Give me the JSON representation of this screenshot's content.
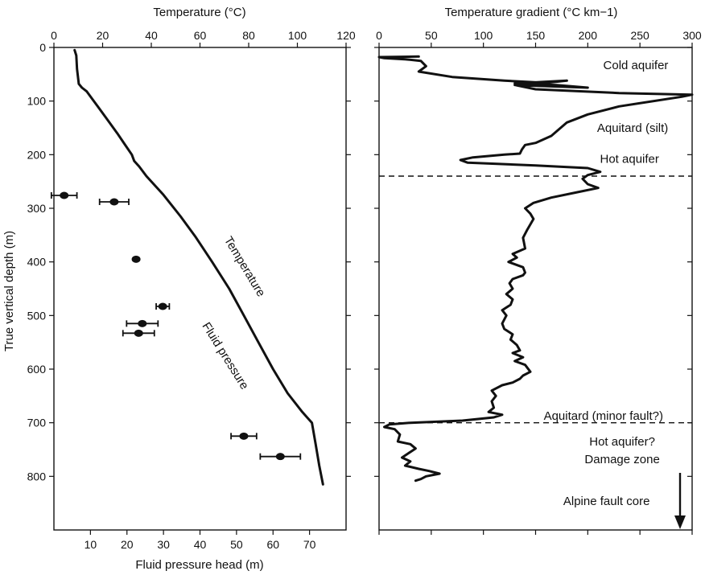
{
  "chart_data": [
    {
      "type": "line",
      "panel": "left",
      "ylabel": "True vertical depth (m)",
      "ylim": [
        0,
        900
      ],
      "yticks": [
        0,
        100,
        200,
        300,
        400,
        500,
        600,
        700,
        800
      ],
      "top_axis": {
        "label": "Temperature (°C)",
        "lim": [
          0,
          120
        ],
        "ticks": [
          0,
          20,
          40,
          60,
          80,
          100,
          120
        ]
      },
      "bottom_axis": {
        "label": "Fluid pressure head (m)",
        "lim": [
          0,
          80
        ],
        "ticks": [
          10,
          20,
          30,
          40,
          50,
          60,
          70
        ]
      },
      "annotations": [
        "Temperature",
        "Fluid pressure"
      ],
      "series": [
        {
          "name": "Temperature",
          "x_axis": "top",
          "points": [
            [
              8.5,
              5
            ],
            [
              9.2,
              15
            ],
            [
              9.5,
              40
            ],
            [
              10.2,
              68
            ],
            [
              11.5,
              75
            ],
            [
              13.5,
              82
            ],
            [
              18,
              110
            ],
            [
              22,
              135
            ],
            [
              26,
              160
            ],
            [
              29,
              180
            ],
            [
              32,
              200
            ],
            [
              33,
              212
            ],
            [
              35,
              222
            ],
            [
              38,
              240
            ],
            [
              45,
              275
            ],
            [
              52,
              315
            ],
            [
              58,
              352
            ],
            [
              65,
              400
            ],
            [
              72,
              450
            ],
            [
              78,
              500
            ],
            [
              84,
              550
            ],
            [
              90,
              600
            ],
            [
              96,
              645
            ],
            [
              102,
              680
            ],
            [
              106,
              700
            ],
            [
              107.5,
              740
            ],
            [
              109,
              780
            ],
            [
              110.5,
              815
            ]
          ]
        },
        {
          "name": "Fluid pressure",
          "x_axis": "bottom",
          "type": "errorbar",
          "points": [
            {
              "x": 2.8,
              "y": 276,
              "xerr": 3.5
            },
            {
              "x": 16.5,
              "y": 288,
              "xerr": 4
            },
            {
              "x": 22.5,
              "y": 395,
              "xerr": 0
            },
            {
              "x": 29.8,
              "y": 483,
              "xerr": 1.8
            },
            {
              "x": 24.2,
              "y": 515,
              "xerr": 4.3
            },
            {
              "x": 23.2,
              "y": 533,
              "xerr": 4.3
            },
            {
              "x": 52,
              "y": 725,
              "xerr": 3.5
            },
            {
              "x": 62,
              "y": 763,
              "xerr": 5.5
            }
          ]
        }
      ]
    },
    {
      "type": "line",
      "panel": "right",
      "xlabel": "Temperature gradient (°C km−1)",
      "xlim": [
        0,
        300
      ],
      "xticks": [
        0,
        50,
        100,
        150,
        200,
        250,
        300
      ],
      "ylim": [
        0,
        900
      ],
      "yticks": [
        0,
        100,
        200,
        300,
        400,
        500,
        600,
        700,
        800
      ],
      "series": [
        {
          "name": "Temperature gradient",
          "points": [
            [
              38,
              17
            ],
            [
              0,
              18
            ],
            [
              5,
              20
            ],
            [
              25,
              22
            ],
            [
              40,
              25
            ],
            [
              45,
              35
            ],
            [
              38,
              45
            ],
            [
              70,
              55
            ],
            [
              120,
              62
            ],
            [
              160,
              66
            ],
            [
              180,
              62
            ],
            [
              130,
              67
            ],
            [
              170,
              70
            ],
            [
              200,
              75
            ],
            [
              130,
              70
            ],
            [
              150,
              78
            ],
            [
              230,
              85
            ],
            [
              300,
              88
            ],
            [
              290,
              92
            ],
            [
              230,
              110
            ],
            [
              200,
              125
            ],
            [
              180,
              140
            ],
            [
              165,
              165
            ],
            [
              150,
              178
            ],
            [
              140,
              182
            ],
            [
              137,
              190
            ],
            [
              135,
              198
            ],
            [
              120,
              200
            ],
            [
              90,
              205
            ],
            [
              78,
              210
            ],
            [
              85,
              215
            ],
            [
              150,
              220
            ],
            [
              200,
              225
            ],
            [
              212,
              232
            ],
            [
              200,
              238
            ],
            [
              195,
              245
            ],
            [
              200,
              255
            ],
            [
              210,
              262
            ],
            [
              190,
              270
            ],
            [
              165,
              280
            ],
            [
              148,
              290
            ],
            [
              140,
              300
            ],
            [
              145,
              310
            ],
            [
              148,
              320
            ],
            [
              142,
              340
            ],
            [
              138,
              355
            ],
            [
              140,
              375
            ],
            [
              128,
              385
            ],
            [
              132,
              392
            ],
            [
              124,
              400
            ],
            [
              138,
              410
            ],
            [
              140,
              420
            ],
            [
              138,
              425
            ],
            [
              128,
              432
            ],
            [
              125,
              440
            ],
            [
              128,
              450
            ],
            [
              122,
              460
            ],
            [
              128,
              470
            ],
            [
              126,
              480
            ],
            [
              118,
              490
            ],
            [
              122,
              500
            ],
            [
              118,
              515
            ],
            [
              120,
              525
            ],
            [
              128,
              535
            ],
            [
              126,
              545
            ],
            [
              132,
              555
            ],
            [
              135,
              565
            ],
            [
              128,
              570
            ],
            [
              138,
              578
            ],
            [
              130,
              585
            ],
            [
              140,
              592
            ],
            [
              145,
              605
            ],
            [
              138,
              612
            ],
            [
              135,
              618
            ],
            [
              128,
              625
            ],
            [
              118,
              630
            ],
            [
              108,
              640
            ],
            [
              112,
              650
            ],
            [
              108,
              660
            ],
            [
              110,
              672
            ],
            [
              105,
              680
            ],
            [
              118,
              685
            ],
            [
              110,
              690
            ],
            [
              80,
              696
            ],
            [
              30,
              700
            ],
            [
              10,
              703
            ],
            [
              5,
              708
            ],
            [
              15,
              712
            ],
            [
              20,
              722
            ],
            [
              18,
              735
            ],
            [
              30,
              740
            ],
            [
              35,
              748
            ],
            [
              28,
              757
            ],
            [
              22,
              765
            ],
            [
              30,
              772
            ],
            [
              25,
              780
            ],
            [
              38,
              786
            ],
            [
              48,
              790
            ],
            [
              58,
              795
            ],
            [
              45,
              800
            ],
            [
              40,
              805
            ],
            [
              35,
              808
            ]
          ]
        }
      ],
      "reference_lines_y": [
        240,
        700
      ],
      "annotations": [
        {
          "text": "Cold aquifer",
          "x": 246,
          "y": 33
        },
        {
          "text": "Aquitard (silt)",
          "x": 243,
          "y": 150
        },
        {
          "text": "Hot aquifer",
          "x": 240,
          "y": 208
        },
        {
          "text": "Aquitard (minor fault?)",
          "x": 215,
          "y": 687
        },
        {
          "text": "Hot aquifer?",
          "x": 233,
          "y": 735
        },
        {
          "text": "Damage zone",
          "x": 233,
          "y": 768
        },
        {
          "text": "Alpine fault core",
          "x": 218,
          "y": 846
        }
      ]
    }
  ]
}
